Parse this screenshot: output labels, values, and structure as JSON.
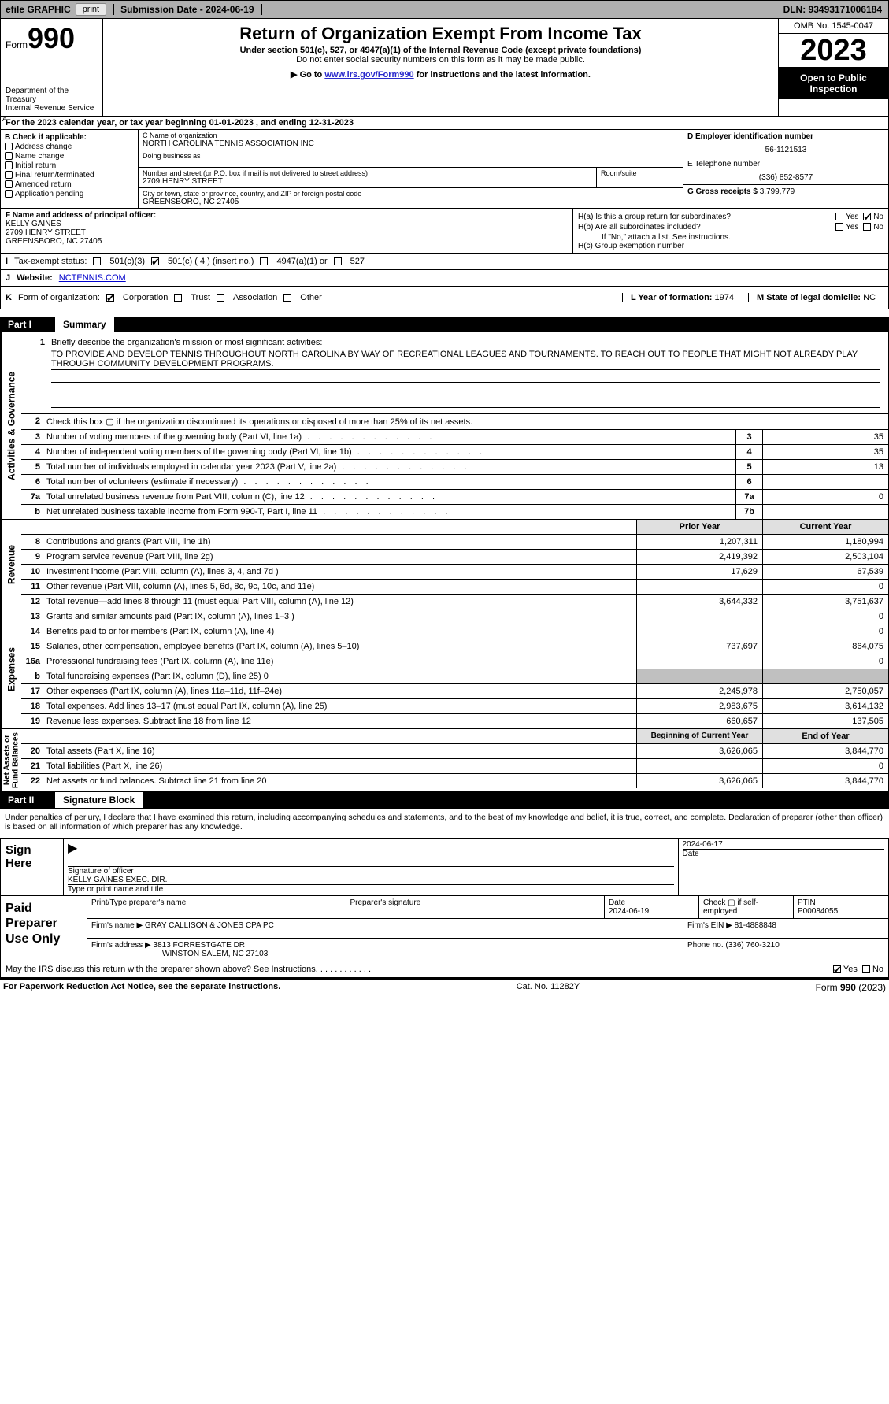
{
  "topbar": {
    "efile_label": "efile GRAPHIC",
    "print_label": "print",
    "submission_label": "Submission Date - 2024-06-19",
    "dln_label": "DLN: 93493171006184"
  },
  "header": {
    "form_prefix": "Form",
    "form_number": "990",
    "dept": "Department of the Treasury\nInternal Revenue Service",
    "title": "Return of Organization Exempt From Income Tax",
    "sub1": "Under section 501(c), 527, or 4947(a)(1) of the Internal Revenue Code (except private foundations)",
    "sub2": "Do not enter social security numbers on this form as it may be made public.",
    "sub3_prefix": "Go to ",
    "sub3_link": "www.irs.gov/Form990",
    "sub3_suffix": " for instructions and the latest information.",
    "omb": "OMB No. 1545-0047",
    "year": "2023",
    "open": "Open to Public Inspection"
  },
  "line_a": "For the 2023 calendar year, or tax year beginning 01-01-2023   , and ending 12-31-2023",
  "b": {
    "label": "B Check if applicable:",
    "opts": [
      "Address change",
      "Name change",
      "Initial return",
      "Final return/terminated",
      "Amended return",
      "Application pending"
    ]
  },
  "c": {
    "name_lbl": "C Name of organization",
    "name": "NORTH CAROLINA TENNIS ASSOCIATION INC",
    "dba_lbl": "Doing business as",
    "addr_lbl": "Number and street (or P.O. box if mail is not delivered to street address)",
    "suite_lbl": "Room/suite",
    "addr": "2709 HENRY STREET",
    "city_lbl": "City or town, state or province, country, and ZIP or foreign postal code",
    "city": "GREENSBORO, NC  27405"
  },
  "d": {
    "lbl": "D Employer identification number",
    "val": "56-1121513"
  },
  "e": {
    "lbl": "E Telephone number",
    "val": "(336) 852-8577"
  },
  "g": {
    "lbl": "G Gross receipts $",
    "val": "3,799,779"
  },
  "f": {
    "lbl": "F  Name and address of principal officer:",
    "name": "KELLY GAINES",
    "addr1": "2709 HENRY STREET",
    "addr2": "GREENSBORO, NC  27405"
  },
  "h": {
    "a": "H(a)  Is this a group return for subordinates?",
    "b": "H(b)  Are all subordinates included?",
    "note": "If \"No,\" attach a list. See instructions.",
    "c": "H(c)  Group exemption number",
    "yes": "Yes",
    "no": "No"
  },
  "i": {
    "lbl": "Tax-exempt status:",
    "o1": "501(c)(3)",
    "o2": "501(c) ( 4 ) (insert no.)",
    "o3": "4947(a)(1) or",
    "o4": "527"
  },
  "j": {
    "lbl": "Website:",
    "val": "NCTENNIS.COM"
  },
  "k": {
    "lbl": "Form of organization:",
    "o1": "Corporation",
    "o2": "Trust",
    "o3": "Association",
    "o4": "Other"
  },
  "l": {
    "lbl": "L Year of formation:",
    "val": "1974"
  },
  "m": {
    "lbl": "M State of legal domicile:",
    "val": "NC"
  },
  "part1": {
    "num": "Part I",
    "title": "Summary"
  },
  "side_labels": {
    "ag": "Activities & Governance",
    "rev": "Revenue",
    "exp": "Expenses",
    "nab": "Net Assets or\nFund Balances"
  },
  "mission": {
    "lbl": "Briefly describe the organization's mission or most significant activities:",
    "text": "TO PROVIDE AND DEVELOP TENNIS THROUGHOUT NORTH CAROLINA BY WAY OF RECREATIONAL LEAGUES AND TOURNAMENTS. TO REACH OUT TO PEOPLE THAT MIGHT NOT ALREADY PLAY THROUGH COMMUNITY DEVELOPMENT PROGRAMS."
  },
  "rows_ag": [
    {
      "n": "2",
      "d": "Check this box ▢ if the organization discontinued its operations or disposed of more than 25% of its net assets.",
      "box": "",
      "v": ""
    },
    {
      "n": "3",
      "d": "Number of voting members of the governing body (Part VI, line 1a)",
      "box": "3",
      "v": "35"
    },
    {
      "n": "4",
      "d": "Number of independent voting members of the governing body (Part VI, line 1b)",
      "box": "4",
      "v": "35"
    },
    {
      "n": "5",
      "d": "Total number of individuals employed in calendar year 2023 (Part V, line 2a)",
      "box": "5",
      "v": "13"
    },
    {
      "n": "6",
      "d": "Total number of volunteers (estimate if necessary)",
      "box": "6",
      "v": ""
    },
    {
      "n": "7a",
      "d": "Total unrelated business revenue from Part VIII, column (C), line 12",
      "box": "7a",
      "v": "0"
    },
    {
      "n": "b",
      "d": "Net unrelated business taxable income from Form 990-T, Part I, line 11",
      "box": "7b",
      "v": ""
    }
  ],
  "col_hdrs": {
    "prior": "Prior Year",
    "current": "Current Year"
  },
  "rows_rev": [
    {
      "n": "8",
      "d": "Contributions and grants (Part VIII, line 1h)",
      "p": "1,207,311",
      "c": "1,180,994"
    },
    {
      "n": "9",
      "d": "Program service revenue (Part VIII, line 2g)",
      "p": "2,419,392",
      "c": "2,503,104"
    },
    {
      "n": "10",
      "d": "Investment income (Part VIII, column (A), lines 3, 4, and 7d )",
      "p": "17,629",
      "c": "67,539"
    },
    {
      "n": "11",
      "d": "Other revenue (Part VIII, column (A), lines 5, 6d, 8c, 9c, 10c, and 11e)",
      "p": "",
      "c": "0"
    },
    {
      "n": "12",
      "d": "Total revenue—add lines 8 through 11 (must equal Part VIII, column (A), line 12)",
      "p": "3,644,332",
      "c": "3,751,637"
    }
  ],
  "rows_exp": [
    {
      "n": "13",
      "d": "Grants and similar amounts paid (Part IX, column (A), lines 1–3 )",
      "p": "",
      "c": "0"
    },
    {
      "n": "14",
      "d": "Benefits paid to or for members (Part IX, column (A), line 4)",
      "p": "",
      "c": "0"
    },
    {
      "n": "15",
      "d": "Salaries, other compensation, employee benefits (Part IX, column (A), lines 5–10)",
      "p": "737,697",
      "c": "864,075"
    },
    {
      "n": "16a",
      "d": "Professional fundraising fees (Part IX, column (A), line 11e)",
      "p": "",
      "c": "0"
    },
    {
      "n": "b",
      "d": "Total fundraising expenses (Part IX, column (D), line 25) 0",
      "p": "GRAY",
      "c": "GRAY"
    },
    {
      "n": "17",
      "d": "Other expenses (Part IX, column (A), lines 11a–11d, 11f–24e)",
      "p": "2,245,978",
      "c": "2,750,057"
    },
    {
      "n": "18",
      "d": "Total expenses. Add lines 13–17 (must equal Part IX, column (A), line 25)",
      "p": "2,983,675",
      "c": "3,614,132"
    },
    {
      "n": "19",
      "d": "Revenue less expenses. Subtract line 18 from line 12",
      "p": "660,657",
      "c": "137,505"
    }
  ],
  "col_hdrs2": {
    "beg": "Beginning of Current Year",
    "end": "End of Year"
  },
  "rows_nab": [
    {
      "n": "20",
      "d": "Total assets (Part X, line 16)",
      "p": "3,626,065",
      "c": "3,844,770"
    },
    {
      "n": "21",
      "d": "Total liabilities (Part X, line 26)",
      "p": "",
      "c": "0"
    },
    {
      "n": "22",
      "d": "Net assets or fund balances. Subtract line 21 from line 20",
      "p": "3,626,065",
      "c": "3,844,770"
    }
  ],
  "part2": {
    "num": "Part II",
    "title": "Signature Block"
  },
  "sig_intro": "Under penalties of perjury, I declare that I have examined this return, including accompanying schedules and statements, and to the best of my knowledge and belief, it is true, correct, and complete. Declaration of preparer (other than officer) is based on all information of which preparer has any knowledge.",
  "sign": {
    "here": "Sign Here",
    "sig_lbl": "Signature of officer",
    "date_lbl": "Date",
    "date": "2024-06-17",
    "name": "KELLY GAINES EXEC. DIR.",
    "name_lbl": "Type or print name and title"
  },
  "paid": {
    "title": "Paid Preparer Use Only",
    "print_lbl": "Print/Type preparer's name",
    "sig_lbl": "Preparer's signature",
    "date_lbl": "Date",
    "date": "2024-06-19",
    "check_lbl": "Check ▢ if self-employed",
    "ptin_lbl": "PTIN",
    "ptin": "P00084055",
    "firm_name_lbl": "Firm's name",
    "firm_name": "GRAY CALLISON & JONES CPA PC",
    "firm_ein_lbl": "Firm's EIN",
    "firm_ein": "81-4888848",
    "firm_addr_lbl": "Firm's address",
    "firm_addr1": "3813 FORRESTGATE DR",
    "firm_addr2": "WINSTON SALEM, NC  27103",
    "phone_lbl": "Phone no.",
    "phone": "(336) 760-3210"
  },
  "discuss": {
    "q": "May the IRS discuss this return with the preparer shown above? See Instructions.",
    "yes": "Yes",
    "no": "No"
  },
  "footer": {
    "left": "For Paperwork Reduction Act Notice, see the separate instructions.",
    "mid": "Cat. No. 11282Y",
    "right_pre": "Form ",
    "right_b": "990",
    "right_suf": " (2023)"
  }
}
